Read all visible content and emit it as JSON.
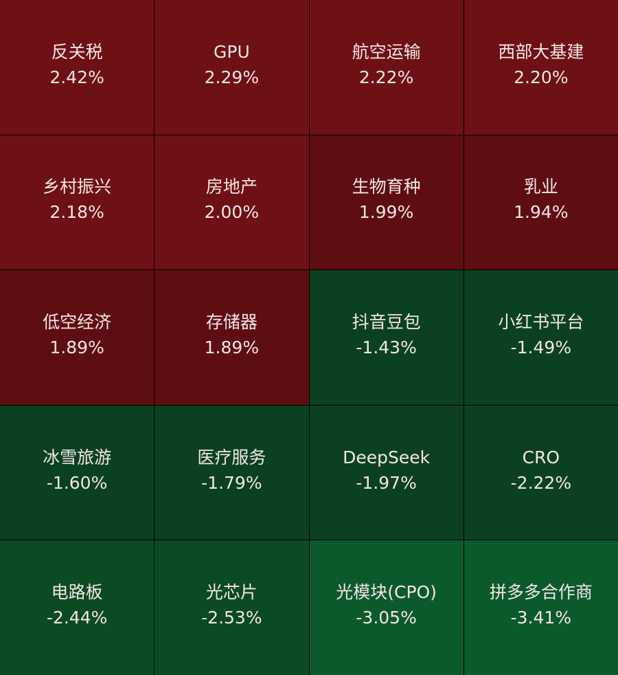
{
  "chart_data": {
    "type": "heatmap",
    "colors": {
      "strong_up": "#6d1116",
      "up": "#5e0e13",
      "down": "#0b4121",
      "mid_down": "#0b4a22",
      "strong_down": "#0b5a2b"
    },
    "cells": [
      {
        "name": "反关税",
        "value": "2.42%",
        "change": 2.42
      },
      {
        "name": "GPU",
        "value": "2.29%",
        "change": 2.29
      },
      {
        "name": "航空运输",
        "value": "2.22%",
        "change": 2.22
      },
      {
        "name": "西部大基建",
        "value": "2.20%",
        "change": 2.2
      },
      {
        "name": "乡村振兴",
        "value": "2.18%",
        "change": 2.18
      },
      {
        "name": "房地产",
        "value": "2.00%",
        "change": 2.0
      },
      {
        "name": "生物育种",
        "value": "1.99%",
        "change": 1.99
      },
      {
        "name": "乳业",
        "value": "1.94%",
        "change": 1.94
      },
      {
        "name": "低空经济",
        "value": "1.89%",
        "change": 1.89
      },
      {
        "name": "存储器",
        "value": "1.89%",
        "change": 1.89
      },
      {
        "name": "抖音豆包",
        "value": "-1.43%",
        "change": -1.43
      },
      {
        "name": "小红书平台",
        "value": "-1.49%",
        "change": -1.49
      },
      {
        "name": "冰雪旅游",
        "value": "-1.60%",
        "change": -1.6
      },
      {
        "name": "医疗服务",
        "value": "-1.79%",
        "change": -1.79
      },
      {
        "name": "DeepSeek",
        "value": "-1.97%",
        "change": -1.97
      },
      {
        "name": "CRO",
        "value": "-2.22%",
        "change": -2.22
      },
      {
        "name": "电路板",
        "value": "-2.44%",
        "change": -2.44
      },
      {
        "name": "光芯片",
        "value": "-2.53%",
        "change": -2.53
      },
      {
        "name": "光模块(CPO)",
        "value": "-3.05%",
        "change": -3.05
      },
      {
        "name": "拼多多合作商",
        "value": "-3.41%",
        "change": -3.41
      }
    ]
  }
}
